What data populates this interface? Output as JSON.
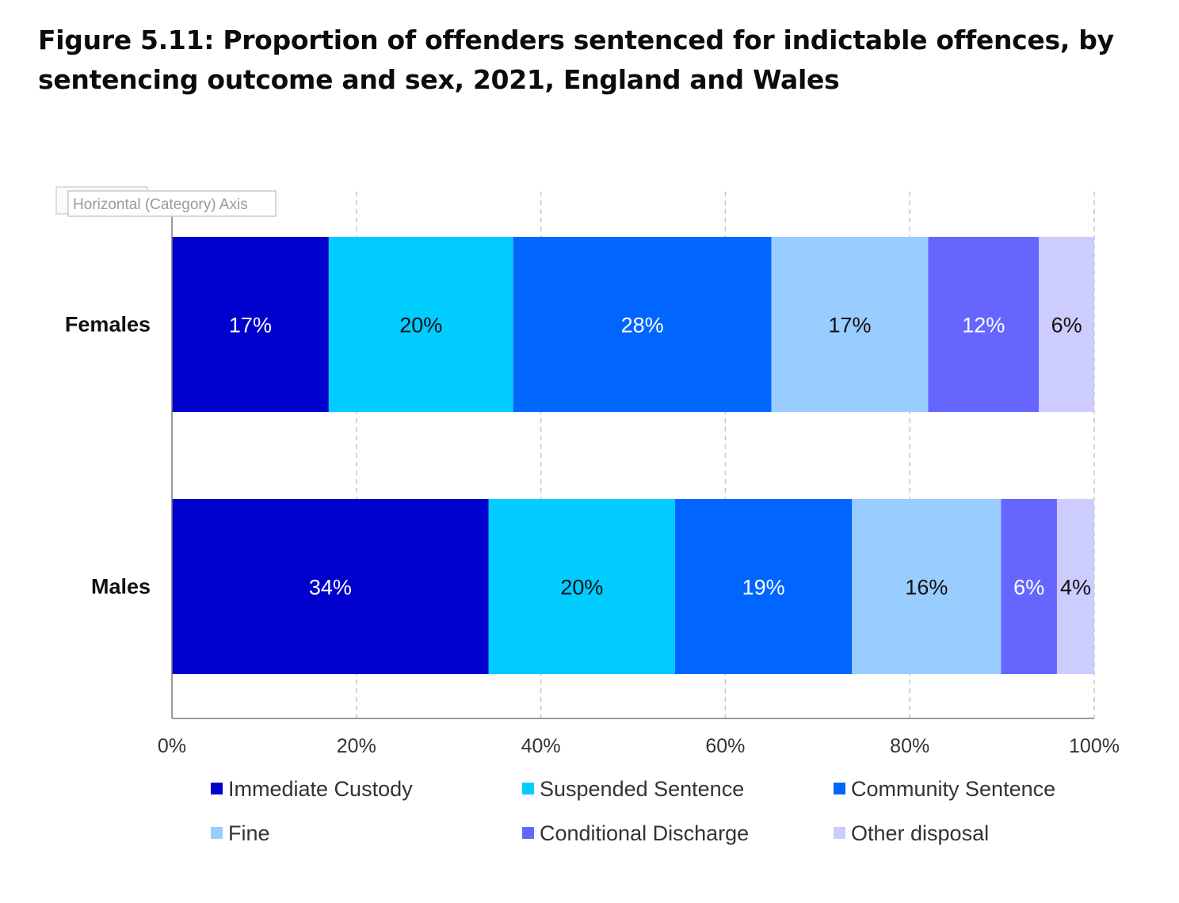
{
  "figure": {
    "title": "Figure 5.11: Proportion of offenders sentenced for indictable offences, by sentencing outcome and sex, 2021, England and Wales"
  },
  "axis_tooltip": "Horizontal (Category) Axis",
  "chart_data": {
    "type": "bar",
    "orientation": "horizontal",
    "stacked": "percent",
    "categories": [
      "Females",
      "Males"
    ],
    "series": [
      {
        "name": "Immediate Custody",
        "color": "#0000CC",
        "label_color": "#ffffff",
        "values": [
          17,
          34
        ],
        "labels": [
          "17%",
          "34%"
        ]
      },
      {
        "name": "Suspended Sentence",
        "color": "#00CCFF",
        "label_color": "#111111",
        "values": [
          20,
          20
        ],
        "labels": [
          "20%",
          "20%"
        ]
      },
      {
        "name": "Community Sentence",
        "color": "#0066FF",
        "label_color": "#ffffff",
        "values": [
          28,
          19
        ],
        "labels": [
          "28%",
          "19%"
        ]
      },
      {
        "name": "Fine",
        "color": "#99CCFF",
        "label_color": "#111111",
        "values": [
          17,
          16
        ],
        "labels": [
          "17%",
          "16%"
        ]
      },
      {
        "name": "Conditional Discharge",
        "color": "#6666FF",
        "label_color": "#ffffff",
        "values": [
          12,
          6
        ],
        "labels": [
          "12%",
          "6%"
        ]
      },
      {
        "name": "Other disposal",
        "color": "#CCCCFF",
        "label_color": "#111111",
        "values": [
          6,
          4
        ],
        "labels": [
          "6%",
          "4%"
        ]
      }
    ],
    "xlim": [
      0,
      100
    ],
    "xticks": [
      0,
      20,
      40,
      60,
      80,
      100
    ],
    "xtick_labels": [
      "0%",
      "20%",
      "40%",
      "60%",
      "80%",
      "100%"
    ],
    "grid": "vertical dashed",
    "legend": "bottom"
  }
}
